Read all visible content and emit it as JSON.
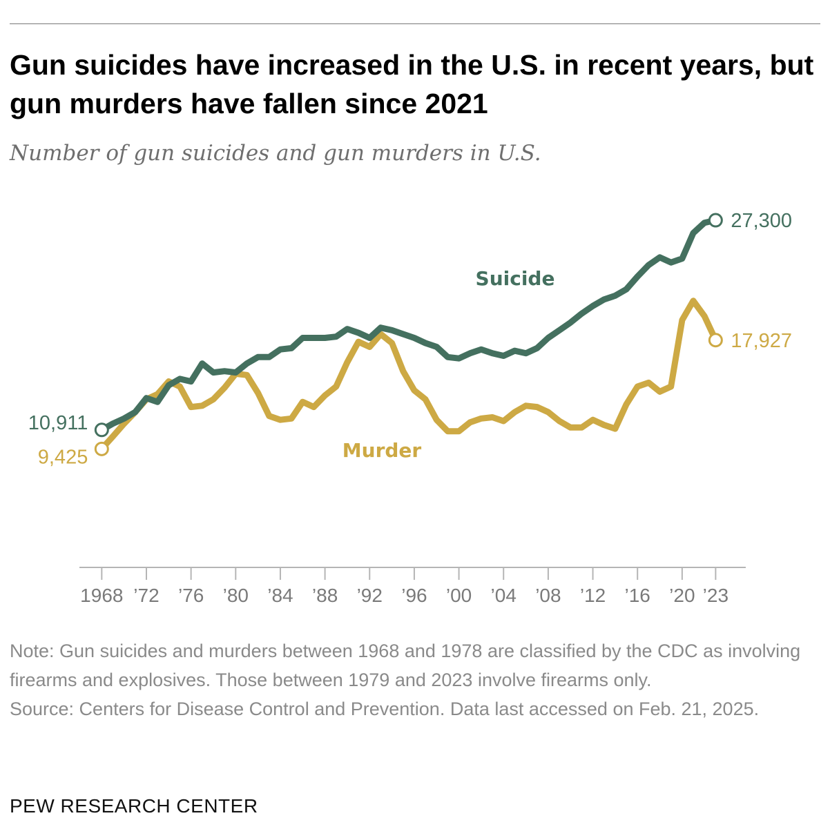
{
  "title": "Gun suicides have increased in the U.S. in recent years, but gun murders have fallen since 2021",
  "subtitle": "Number of gun suicides and gun murders in U.S.",
  "notes": {
    "note": "Note: Gun suicides and murders between 1968 and 1978 are classified by the CDC as involving firearms and explosives. Those between 1979 and 2023 involve firearms only.",
    "source": "Source: Centers for Disease Control and Prevention. Data last accessed on Feb. 21, 2025."
  },
  "brand": "PEW RESEARCH CENTER",
  "chart_data": {
    "type": "line",
    "title": "Gun suicides have increased in the U.S. in recent years, but gun murders have fallen since 2021",
    "subtitle": "Number of gun suicides and gun murders in U.S.",
    "xlabel": "",
    "ylabel": "",
    "xlim": [
      1966,
      2025.7
    ],
    "ylim": [
      0,
      30000
    ],
    "grid": false,
    "legend": "inline labels",
    "x_ticks": [
      1968,
      1972,
      1976,
      1980,
      1984,
      1988,
      1992,
      1996,
      2000,
      2004,
      2008,
      2012,
      2016,
      2020,
      2023
    ],
    "x_tick_labels": [
      "1968",
      "’72",
      "’76",
      "’80",
      "’84",
      "’88",
      "’92",
      "’96",
      "’00",
      "’04",
      "’08",
      "’12",
      "’16",
      "’20",
      "’23"
    ],
    "x": [
      1968,
      1969,
      1970,
      1971,
      1972,
      1973,
      1974,
      1975,
      1976,
      1977,
      1978,
      1979,
      1980,
      1981,
      1982,
      1983,
      1984,
      1985,
      1986,
      1987,
      1988,
      1989,
      1990,
      1991,
      1992,
      1993,
      1994,
      1995,
      1996,
      1997,
      1998,
      1999,
      2000,
      2001,
      2002,
      2003,
      2004,
      2005,
      2006,
      2007,
      2008,
      2009,
      2010,
      2011,
      2012,
      2013,
      2014,
      2015,
      2016,
      2017,
      2018,
      2019,
      2020,
      2021,
      2022,
      2023
    ],
    "series": [
      {
        "name": "Suicide",
        "color": "#44705f",
        "values": [
          10911,
          11400,
          11800,
          12300,
          13400,
          13100,
          14400,
          14900,
          14700,
          16100,
          15400,
          15500,
          15400,
          16100,
          16600,
          16600,
          17200,
          17300,
          18100,
          18100,
          18100,
          18200,
          18800,
          18500,
          18100,
          18900,
          18700,
          18400,
          18100,
          17700,
          17400,
          16600,
          16500,
          16900,
          17200,
          16900,
          16700,
          17100,
          16900,
          17300,
          18100,
          18700,
          19300,
          20000,
          20600,
          21100,
          21400,
          21900,
          22900,
          23800,
          24400,
          24000,
          24300,
          26300,
          27100,
          27300
        ],
        "start_label": "10,911",
        "end_label": "27,300"
      },
      {
        "name": "Murder",
        "color": "#cda944",
        "values": [
          9425,
          10400,
          11400,
          12300,
          13300,
          13700,
          14700,
          14300,
          12700,
          12800,
          13300,
          14200,
          15300,
          15200,
          13800,
          12000,
          11700,
          11800,
          13100,
          12700,
          13600,
          14300,
          16200,
          17800,
          17400,
          18400,
          17700,
          15500,
          14000,
          13300,
          11700,
          10800,
          10800,
          11500,
          11800,
          11900,
          11600,
          12300,
          12800,
          12700,
          12300,
          11600,
          11100,
          11100,
          11700,
          11300,
          11000,
          12900,
          14300,
          14600,
          13900,
          14300,
          19500,
          21000,
          19800,
          17927
        ],
        "start_label": "9,425",
        "end_label": "17,927"
      }
    ]
  }
}
